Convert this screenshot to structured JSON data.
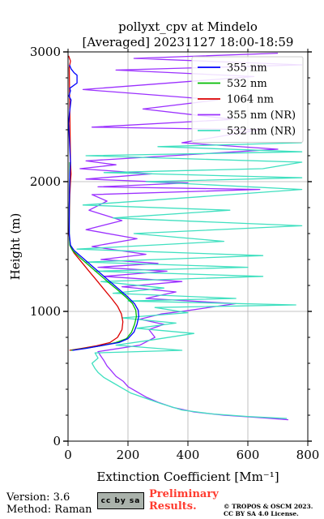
{
  "chart_data": {
    "type": "line",
    "title_line1": "pollyxt_cpv at Mindelo",
    "title_line2": "[Averaged] 20231127 18:00-18:59",
    "xlabel": "Extinction Coefficient [Mm⁻¹]",
    "ylabel": "Height (m)",
    "xlim": [
      0,
      800
    ],
    "ylim": [
      0,
      3000
    ],
    "xticks": [
      0,
      200,
      400,
      600,
      800
    ],
    "yticks": [
      0,
      1000,
      2000,
      3000
    ],
    "grid": true,
    "legend_position": "top-right",
    "series": [
      {
        "name": "355 nm",
        "color": "#0000ff",
        "points": [
          [
            15,
            700
          ],
          [
            60,
            715
          ],
          [
            120,
            740
          ],
          [
            170,
            760
          ],
          [
            200,
            790
          ],
          [
            220,
            840
          ],
          [
            230,
            900
          ],
          [
            236,
            960
          ],
          [
            234,
            1010
          ],
          [
            222,
            1060
          ],
          [
            200,
            1110
          ],
          [
            170,
            1170
          ],
          [
            140,
            1230
          ],
          [
            110,
            1290
          ],
          [
            80,
            1350
          ],
          [
            50,
            1410
          ],
          [
            20,
            1470
          ],
          [
            8,
            1510
          ],
          [
            4,
            1600
          ],
          [
            4,
            1800
          ],
          [
            6,
            2050
          ],
          [
            8,
            2150
          ],
          [
            2,
            2450
          ],
          [
            5,
            2530
          ],
          [
            10,
            2630
          ],
          [
            3,
            2660
          ],
          [
            8,
            2700
          ],
          [
            6,
            2720
          ],
          [
            30,
            2760
          ],
          [
            30,
            2820
          ],
          [
            20,
            2840
          ],
          [
            10,
            2870
          ],
          [
            5,
            2900
          ]
        ]
      },
      {
        "name": "532 nm",
        "color": "#00bb00",
        "points": [
          [
            10,
            700
          ],
          [
            55,
            715
          ],
          [
            110,
            735
          ],
          [
            160,
            760
          ],
          [
            195,
            790
          ],
          [
            212,
            840
          ],
          [
            222,
            900
          ],
          [
            228,
            960
          ],
          [
            226,
            1010
          ],
          [
            215,
            1060
          ],
          [
            193,
            1110
          ],
          [
            163,
            1170
          ],
          [
            132,
            1230
          ],
          [
            102,
            1290
          ],
          [
            72,
            1350
          ],
          [
            42,
            1410
          ],
          [
            15,
            1470
          ],
          [
            6,
            1510
          ],
          [
            4,
            1600
          ],
          [
            4,
            1800
          ],
          [
            6,
            2050
          ],
          [
            6,
            2150
          ]
        ]
      },
      {
        "name": "1064 nm",
        "color": "#dd0000",
        "points": [
          [
            5,
            700
          ],
          [
            45,
            715
          ],
          [
            95,
            735
          ],
          [
            140,
            760
          ],
          [
            165,
            800
          ],
          [
            180,
            860
          ],
          [
            183,
            920
          ],
          [
            178,
            980
          ],
          [
            165,
            1040
          ],
          [
            145,
            1100
          ],
          [
            120,
            1170
          ],
          [
            95,
            1240
          ],
          [
            70,
            1310
          ],
          [
            45,
            1380
          ],
          [
            20,
            1450
          ],
          [
            8,
            1500
          ],
          [
            3,
            1600
          ],
          [
            4,
            1700
          ],
          [
            6,
            1900
          ],
          [
            8,
            2000
          ],
          [
            10,
            2060
          ],
          [
            8,
            2150
          ],
          [
            4,
            2880
          ],
          [
            8,
            2930
          ],
          [
            2,
            2970
          ]
        ]
      },
      {
        "name": "355 nm (NR)",
        "color": "#9b30ff",
        "points": [
          [
            735,
            165
          ],
          [
            650,
            180
          ],
          [
            520,
            200
          ],
          [
            420,
            225
          ],
          [
            350,
            260
          ],
          [
            300,
            300
          ],
          [
            260,
            340
          ],
          [
            230,
            380
          ],
          [
            200,
            420
          ],
          [
            185,
            460
          ],
          [
            160,
            500
          ],
          [
            145,
            540
          ],
          [
            130,
            580
          ],
          [
            120,
            620
          ],
          [
            108,
            660
          ],
          [
            100,
            690
          ],
          [
            240,
            740
          ],
          [
            290,
            800
          ],
          [
            270,
            860
          ],
          [
            320,
            900
          ],
          [
            240,
            940
          ],
          [
            310,
            980
          ],
          [
            380,
            1000
          ],
          [
            560,
            1060
          ],
          [
            260,
            1100
          ],
          [
            360,
            1150
          ],
          [
            180,
            1190
          ],
          [
            380,
            1230
          ],
          [
            120,
            1270
          ],
          [
            330,
            1310
          ],
          [
            100,
            1340
          ],
          [
            300,
            1370
          ],
          [
            110,
            1400
          ],
          [
            260,
            1440
          ],
          [
            80,
            1500
          ],
          [
            230,
            1560
          ],
          [
            60,
            1630
          ],
          [
            180,
            1700
          ],
          [
            70,
            1780
          ],
          [
            130,
            1850
          ],
          [
            80,
            1900
          ],
          [
            640,
            1940
          ],
          [
            100,
            1960
          ],
          [
            400,
            1990
          ],
          [
            60,
            2020
          ],
          [
            280,
            2060
          ],
          [
            40,
            2100
          ],
          [
            160,
            2130
          ],
          [
            60,
            2160
          ],
          [
            700,
            2250
          ],
          [
            380,
            2300
          ],
          [
            640,
            2400
          ],
          [
            80,
            2420
          ],
          [
            550,
            2480
          ],
          [
            250,
            2560
          ],
          [
            500,
            2630
          ],
          [
            50,
            2710
          ],
          [
            620,
            2810
          ],
          [
            160,
            2860
          ],
          [
            780,
            2900
          ],
          [
            220,
            2950
          ],
          [
            700,
            2990
          ]
        ]
      },
      {
        "name": "532 nm (NR)",
        "color": "#40e0c0",
        "points": [
          [
            730,
            175
          ],
          [
            600,
            190
          ],
          [
            480,
            210
          ],
          [
            380,
            240
          ],
          [
            310,
            290
          ],
          [
            260,
            330
          ],
          [
            210,
            370
          ],
          [
            180,
            410
          ],
          [
            150,
            450
          ],
          [
            120,
            490
          ],
          [
            100,
            530
          ],
          [
            90,
            560
          ],
          [
            80,
            600
          ],
          [
            100,
            640
          ],
          [
            90,
            680
          ],
          [
            380,
            700
          ],
          [
            160,
            740
          ],
          [
            280,
            780
          ],
          [
            420,
            830
          ],
          [
            230,
            870
          ],
          [
            360,
            910
          ],
          [
            180,
            950
          ],
          [
            400,
            990
          ],
          [
            290,
            1030
          ],
          [
            760,
            1050
          ],
          [
            200,
            1080
          ],
          [
            560,
            1100
          ],
          [
            150,
            1140
          ],
          [
            320,
            1180
          ],
          [
            110,
            1230
          ],
          [
            650,
            1270
          ],
          [
            90,
            1310
          ],
          [
            600,
            1340
          ],
          [
            60,
            1380
          ],
          [
            650,
            1430
          ],
          [
            30,
            1480
          ],
          [
            520,
            1540
          ],
          [
            220,
            1600
          ],
          [
            780,
            1660
          ],
          [
            150,
            1720
          ],
          [
            540,
            1780
          ],
          [
            50,
            1820
          ],
          [
            420,
            1880
          ],
          [
            780,
            1940
          ],
          [
            260,
            2000
          ],
          [
            780,
            2030
          ],
          [
            120,
            2070
          ],
          [
            650,
            2100
          ],
          [
            780,
            2150
          ],
          [
            60,
            2200
          ],
          [
            780,
            2230
          ],
          [
            300,
            2270
          ],
          [
            780,
            2300
          ]
        ]
      }
    ]
  },
  "footer": {
    "version": "Version: 3.6",
    "method": "Method: Raman",
    "license_badge": "cc by sa",
    "preliminary_line1": "Preliminary",
    "preliminary_line2": "Results.",
    "preliminary_color": "#ff3b2f",
    "copyright_line1": "© TROPOS & OSCM 2023.",
    "copyright_line2": "CC BY SA 4.0 License."
  }
}
